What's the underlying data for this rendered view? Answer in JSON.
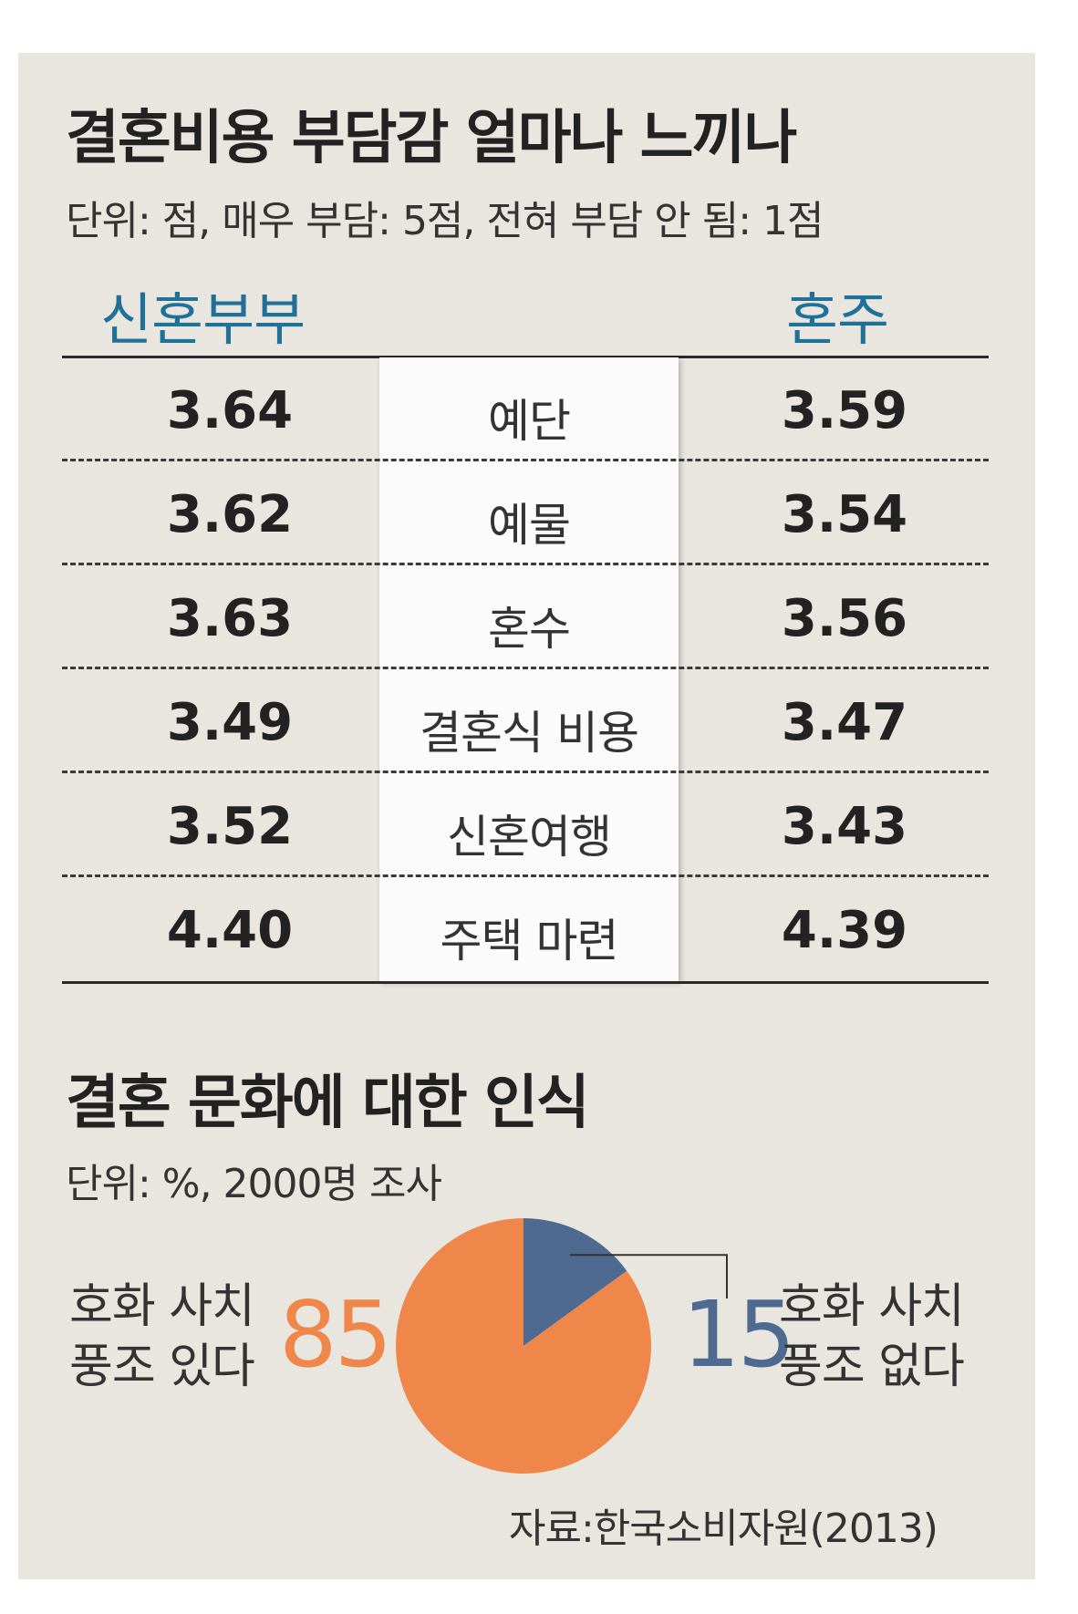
{
  "title": "결혼비용 부담감 얼마나 느끼나",
  "unit": "단위: 점, 매우 부담: 5점, 전혀 부담 안 됨: 1점",
  "col_left": "신혼부부",
  "col_right": "혼주",
  "rows": [
    {
      "category": "예단",
      "left": "3.64",
      "right": "3.59"
    },
    {
      "category": "예물",
      "left": "3.62",
      "right": "3.54"
    },
    {
      "category": "혼수",
      "left": "3.63",
      "right": "3.56"
    },
    {
      "category": "결혼식 비용",
      "left": "3.49",
      "right": "3.47"
    },
    {
      "category": "신혼여행",
      "left": "3.52",
      "right": "3.43"
    },
    {
      "category": "주택 마련",
      "left": "4.40",
      "right": "4.39"
    }
  ],
  "title2": "결혼 문화에 대한 인식",
  "unit2": "단위: %, 2000명 조사",
  "pie_left_label_1": "호화 사치",
  "pie_left_label_2": "풍조 있다",
  "pie_left_value": "85",
  "pie_right_label_1": "호화 사치",
  "pie_right_label_2": "풍조 없다",
  "pie_right_value": "15",
  "source": "자료:한국소비자원(2013)",
  "colors": {
    "accent_blue": "#1f7198",
    "orange": "#f0874a",
    "slate": "#4e6a90",
    "panel": "#e8e6df"
  },
  "chart_data": [
    {
      "type": "table",
      "title": "결혼비용 부담감 얼마나 느끼나",
      "columns": [
        "신혼부부",
        "",
        "혼주"
      ],
      "categories": [
        "예단",
        "예물",
        "혼수",
        "결혼식 비용",
        "신혼여행",
        "주택 마련"
      ],
      "series": [
        {
          "name": "신혼부부",
          "values": [
            3.64,
            3.62,
            3.63,
            3.49,
            3.52,
            4.4
          ]
        },
        {
          "name": "혼주",
          "values": [
            3.59,
            3.54,
            3.56,
            3.47,
            3.43,
            4.39
          ]
        }
      ]
    },
    {
      "type": "pie",
      "title": "결혼 문화에 대한 인식",
      "categories": [
        "호화 사치 풍조 있다",
        "호화 사치 풍조 없다"
      ],
      "values": [
        85,
        15
      ]
    }
  ]
}
